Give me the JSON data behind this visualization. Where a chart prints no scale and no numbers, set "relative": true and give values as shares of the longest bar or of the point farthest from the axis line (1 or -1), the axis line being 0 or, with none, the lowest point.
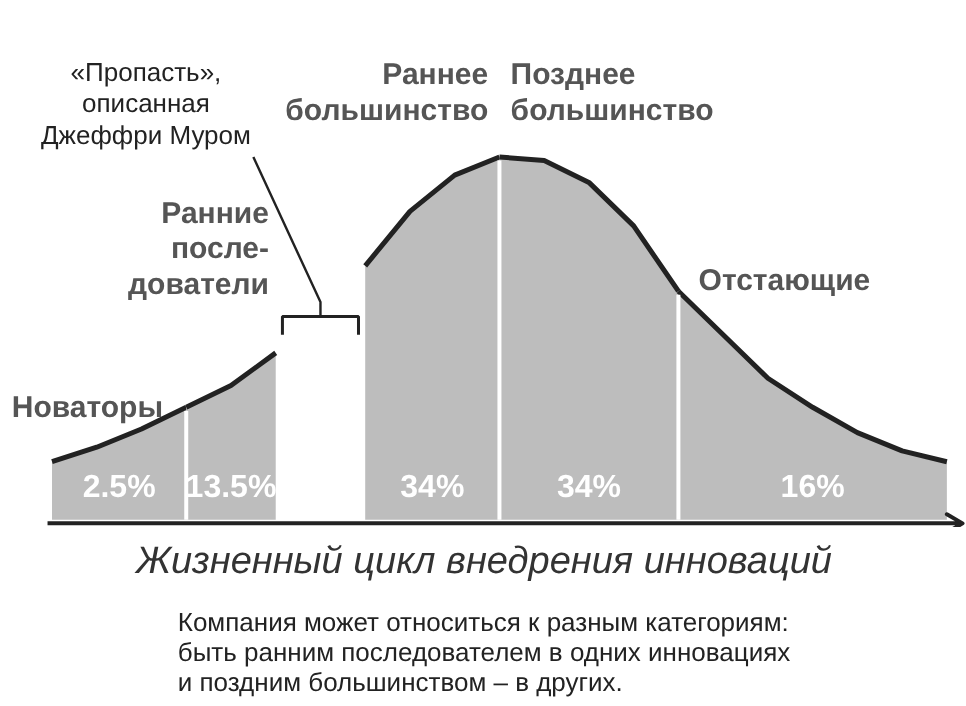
{
  "chart_data": {
    "type": "area",
    "relative": true,
    "tick_labels": false,
    "grid": false,
    "xlabel": "Жизненный цикл внедрения инноваций",
    "categories": [
      null,
      null,
      null,
      null,
      null,
      null,
      null,
      null,
      null,
      null,
      null,
      null,
      null,
      null,
      null,
      null,
      null,
      null,
      null,
      null,
      null
    ],
    "series": [
      {
        "name": "Новаторы",
        "color": "#bdbdbd",
        "values": [
          0.16,
          0.2,
          0.25,
          0.31,
          null,
          null,
          null,
          null,
          null,
          null,
          null,
          null,
          null,
          null,
          null,
          null,
          null,
          null,
          null,
          null,
          null
        ]
      },
      {
        "name": "Ранние\nпосле-\nдователи",
        "color": "#bdbdbd",
        "values": [
          null,
          null,
          null,
          0.31,
          0.37,
          0.46,
          null,
          null,
          null,
          null,
          null,
          null,
          null,
          null,
          null,
          null,
          null,
          null,
          null,
          null,
          null
        ]
      },
      {
        "name": "Раннее\nбольшинство",
        "color": "#bdbdbd",
        "values": [
          null,
          null,
          null,
          null,
          null,
          null,
          null,
          0.7,
          0.85,
          0.95,
          1.0,
          null,
          null,
          null,
          null,
          null,
          null,
          null,
          null,
          null,
          null
        ]
      },
      {
        "name": "Позднее\nбольшинство",
        "color": "#bdbdbd",
        "values": [
          null,
          null,
          null,
          null,
          null,
          null,
          null,
          null,
          null,
          null,
          1.0,
          0.99,
          0.93,
          0.81,
          0.63,
          null,
          null,
          null,
          null,
          null,
          null
        ]
      },
      {
        "name": "Отстающие",
        "color": "#bdbdbd",
        "values": [
          null,
          null,
          null,
          null,
          null,
          null,
          null,
          null,
          null,
          null,
          null,
          null,
          null,
          null,
          0.63,
          0.51,
          0.39,
          0.31,
          0.24,
          0.19,
          0.16
        ]
      }
    ],
    "annotations": [
      "2.5%",
      "13.5%",
      "34%",
      "34%",
      "16%",
      "«Пропасть»,\nописанная\nДжеффри Муром",
      "Компания может относиться к разным категориям:\nбыть ранним последователем в одних инновациях\nи поздним большинством – в других."
    ]
  }
}
